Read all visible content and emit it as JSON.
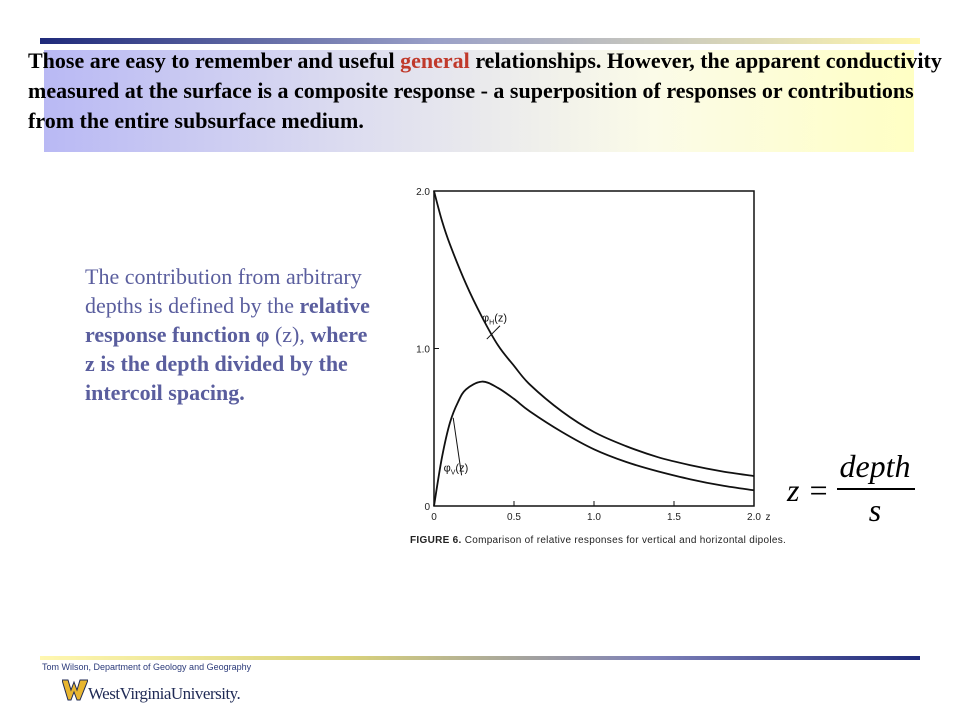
{
  "header": {
    "line_prefix": "Those are easy to remember and useful ",
    "highlight": "general",
    "line_rest": " relationships. However,  the apparent conductivity measured at the surface is a composite response - a superposition of responses or contributions from the entire subsurface medium.",
    "highlight_color": "#c0392b"
  },
  "body_text": {
    "part1": "The contribution from arbitrary depths is defined by the ",
    "bold1": "relative  response function",
    "phi_symbol": "φ",
    "part2": " (z), ",
    "bold2": "where z is the depth divided by the intercoil spacing."
  },
  "equation": {
    "lhs": "z =",
    "numerator": "depth",
    "denominator": "s"
  },
  "chart_data": {
    "type": "line",
    "xlim": [
      0,
      2.0
    ],
    "ylim": [
      0,
      2.0
    ],
    "x_ticks": [
      0,
      0.5,
      1.0,
      1.5,
      2.0
    ],
    "x_tick_labels": [
      "0",
      "0.5",
      "1.0",
      "1.5",
      "2.0"
    ],
    "y_ticks": [
      0,
      1.0,
      2.0
    ],
    "y_tick_labels": [
      "0",
      "1.0",
      "2.0"
    ],
    "xlabel": "z",
    "ylabel": "",
    "series": [
      {
        "name": "φH(z)",
        "x": [
          0,
          0.05,
          0.1,
          0.2,
          0.3,
          0.4,
          0.5,
          0.6,
          0.8,
          1.0,
          1.2,
          1.4,
          1.6,
          1.8,
          2.0
        ],
        "y": [
          2.0,
          1.81,
          1.66,
          1.41,
          1.2,
          1.02,
          0.89,
          0.77,
          0.6,
          0.47,
          0.38,
          0.31,
          0.26,
          0.22,
          0.19
        ]
      },
      {
        "name": "φV(z)",
        "x": [
          0,
          0.05,
          0.1,
          0.15,
          0.2,
          0.3,
          0.4,
          0.5,
          0.6,
          0.8,
          1.0,
          1.2,
          1.4,
          1.6,
          1.8,
          2.0
        ],
        "y": [
          0,
          0.31,
          0.53,
          0.66,
          0.74,
          0.79,
          0.75,
          0.68,
          0.6,
          0.47,
          0.36,
          0.28,
          0.22,
          0.17,
          0.13,
          0.1
        ]
      }
    ],
    "curve_labels": [
      {
        "main": "φ",
        "sub": "H",
        "arg": "(z)"
      },
      {
        "main": "φ",
        "sub": "V",
        "arg": "(z)"
      }
    ]
  },
  "caption": {
    "label": "FIGURE 6.",
    "text": " Comparison of relative responses for vertical and horizontal dipoles."
  },
  "footer": {
    "credit": "Tom Wilson, Department of Geology and Geography",
    "university": "WestVirginiaUniversity."
  }
}
